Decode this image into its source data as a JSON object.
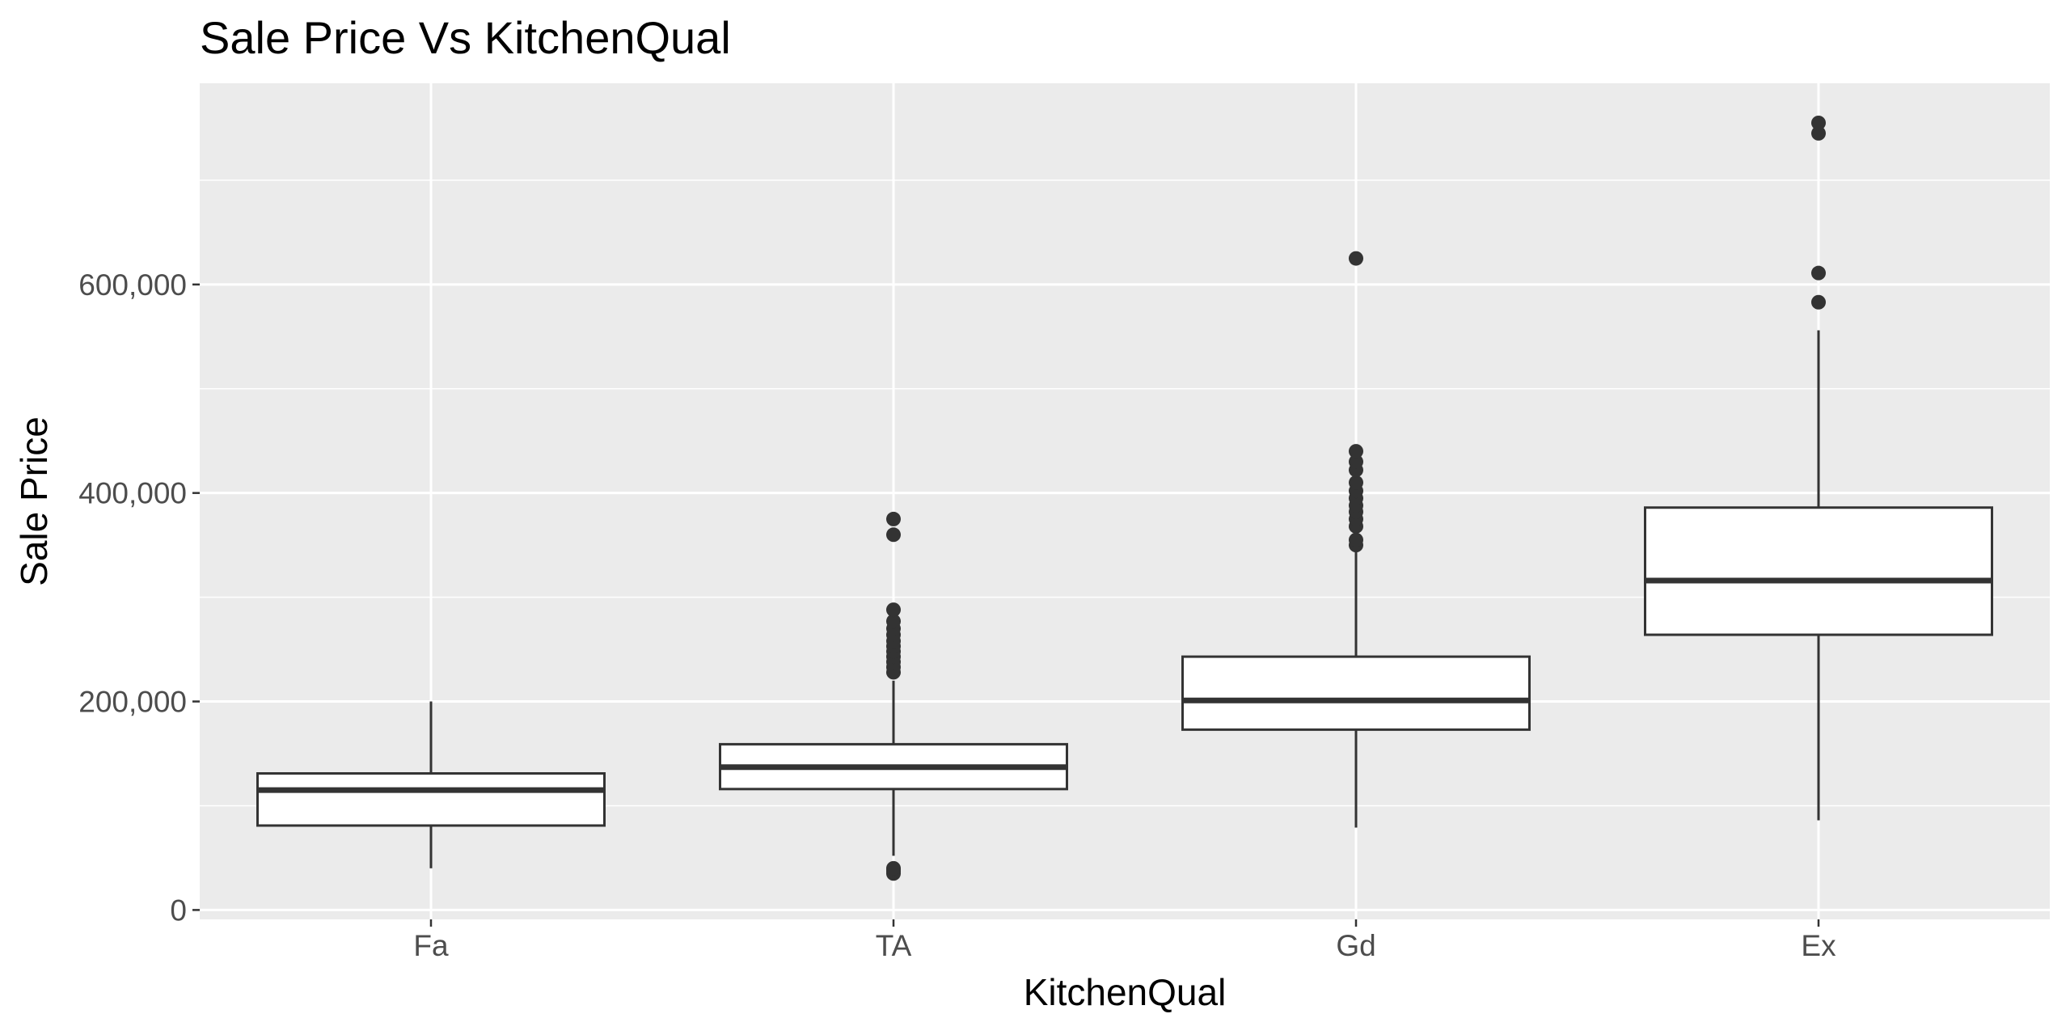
{
  "chart_data": {
    "type": "boxplot",
    "title": "Sale Price Vs KitchenQual",
    "xlabel": "KitchenQual",
    "ylabel": "Sale Price",
    "categories": [
      "Fa",
      "TA",
      "Gd",
      "Ex"
    ],
    "ylim": [
      -9000,
      793000
    ],
    "y_ticks": [
      0,
      200000,
      400000,
      600000
    ],
    "y_tick_labels": [
      "0",
      "200,000",
      "400,000",
      "600,000"
    ],
    "grid": true,
    "boxes": [
      {
        "category": "Fa",
        "whisker_low": 40000,
        "q1": 81000,
        "median": 115000,
        "q3": 131000,
        "whisker_high": 200000,
        "outliers": []
      },
      {
        "category": "TA",
        "whisker_low": 52000,
        "q1": 116000,
        "median": 137000,
        "q3": 159000,
        "whisker_high": 220000,
        "outliers": [
          35000,
          37000,
          39000,
          40000,
          228000,
          233000,
          238000,
          243000,
          248000,
          253000,
          258000,
          264000,
          270000,
          277000,
          288000,
          360000,
          375000
        ]
      },
      {
        "category": "Gd",
        "whisker_low": 79000,
        "q1": 173000,
        "median": 201000,
        "q3": 243000,
        "whisker_high": 345000,
        "outliers": [
          350000,
          355000,
          368000,
          375000,
          382000,
          388000,
          395000,
          402000,
          410000,
          422000,
          430000,
          440000,
          625000
        ]
      },
      {
        "category": "Ex",
        "whisker_low": 86000,
        "q1": 264000,
        "median": 316000,
        "q3": 386000,
        "whisker_high": 556000,
        "outliers": [
          583000,
          611000,
          745000,
          755000
        ]
      }
    ]
  }
}
